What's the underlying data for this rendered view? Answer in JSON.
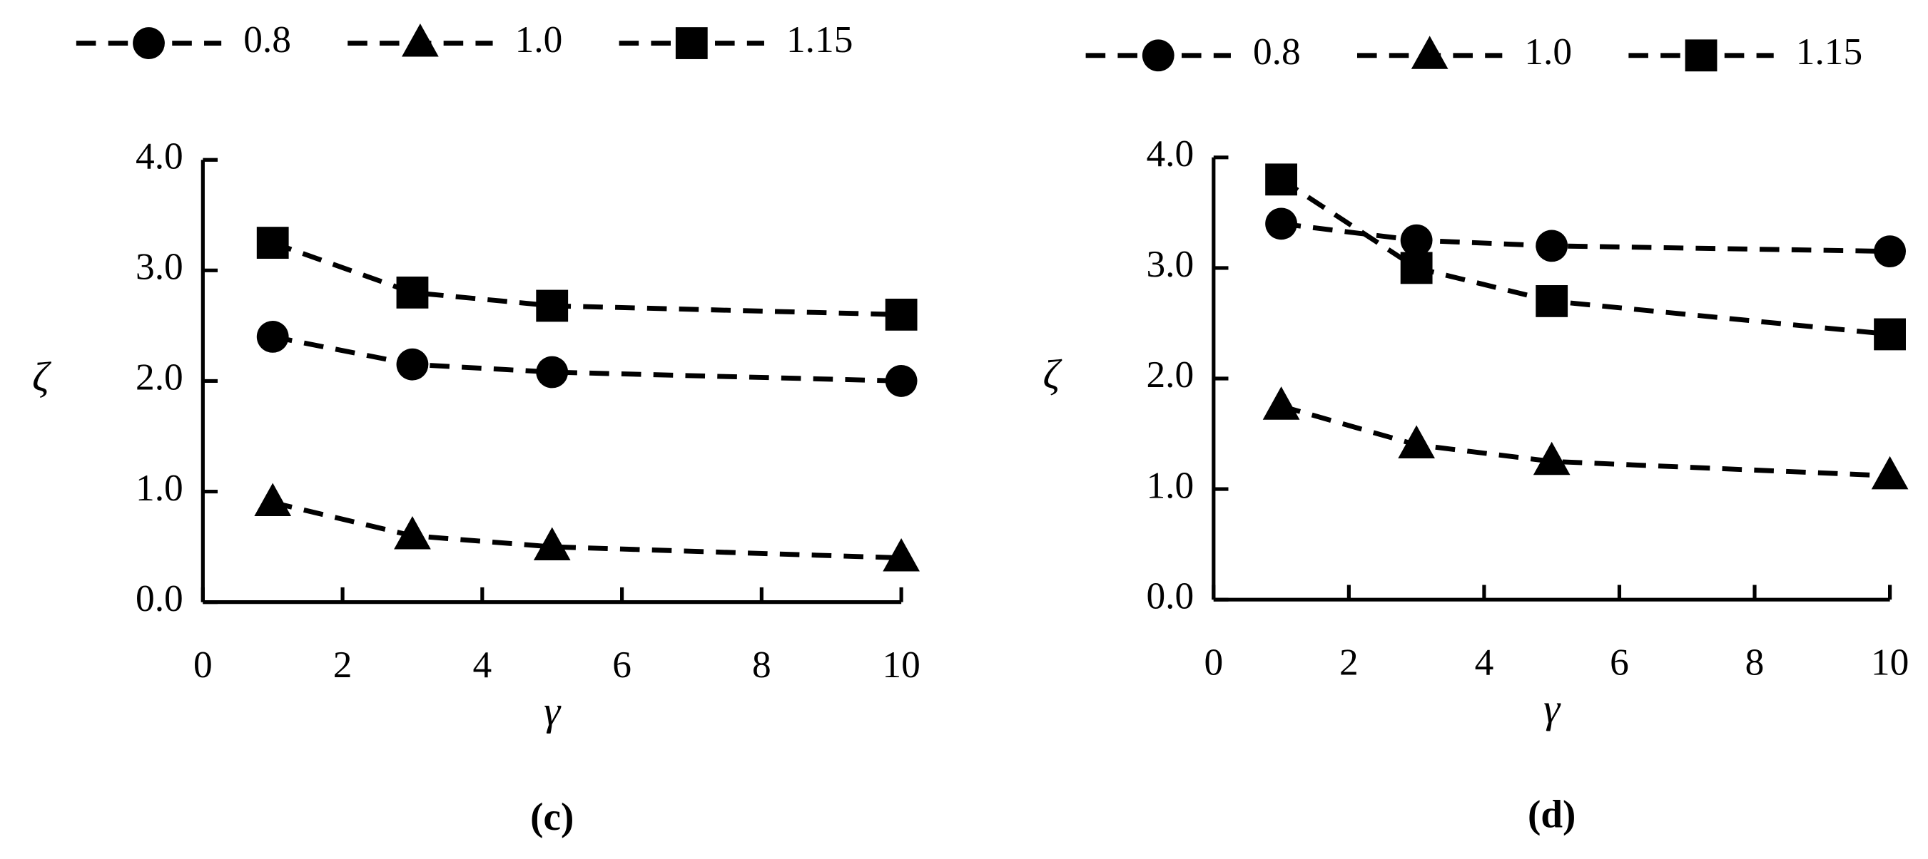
{
  "chart_data": [
    {
      "type": "line",
      "xlabel": "γ",
      "ylabel": "ζ",
      "caption": "(c)",
      "xlim": [
        0,
        10
      ],
      "xticks": [
        0,
        2,
        4,
        6,
        8,
        10
      ],
      "ylim": [
        0,
        4
      ],
      "yticks": [
        {
          "value": 0,
          "label": "0.0"
        },
        {
          "value": 1,
          "label": "1.0"
        },
        {
          "value": 2,
          "label": "2.0"
        },
        {
          "value": 3,
          "label": "3.0"
        },
        {
          "value": 4,
          "label": "4.0"
        }
      ],
      "x": [
        1,
        3,
        5,
        10
      ],
      "series": [
        {
          "name": "0.8",
          "color": "#000000",
          "marker": "circle",
          "values": [
            2.4,
            2.15,
            2.08,
            2.0
          ]
        },
        {
          "name": "1.0",
          "color": "#000000",
          "marker": "triangle",
          "values": [
            0.9,
            0.6,
            0.5,
            0.4
          ]
        },
        {
          "name": "1.15",
          "color": "#000000",
          "marker": "square",
          "values": [
            3.25,
            2.8,
            2.68,
            2.6
          ]
        }
      ]
    },
    {
      "type": "line",
      "xlabel": "γ",
      "ylabel": "ζ",
      "caption": "(d)",
      "xlim": [
        0,
        10
      ],
      "xticks": [
        0,
        2,
        4,
        6,
        8,
        10
      ],
      "ylim": [
        0,
        4
      ],
      "yticks": [
        {
          "value": 0,
          "label": "0.0"
        },
        {
          "value": 1,
          "label": "1.0"
        },
        {
          "value": 2,
          "label": "2.0"
        },
        {
          "value": 3,
          "label": "3.0"
        },
        {
          "value": 4,
          "label": "4.0"
        }
      ],
      "x": [
        1,
        3,
        5,
        10
      ],
      "series": [
        {
          "name": "0.8",
          "color": "#000000",
          "marker": "circle",
          "values": [
            3.4,
            3.25,
            3.2,
            3.15
          ]
        },
        {
          "name": "1.0",
          "color": "#000000",
          "marker": "triangle",
          "values": [
            1.75,
            1.4,
            1.25,
            1.12
          ]
        },
        {
          "name": "1.15",
          "color": "#000000",
          "marker": "square",
          "values": [
            3.8,
            3.0,
            2.7,
            2.4
          ]
        }
      ]
    }
  ]
}
